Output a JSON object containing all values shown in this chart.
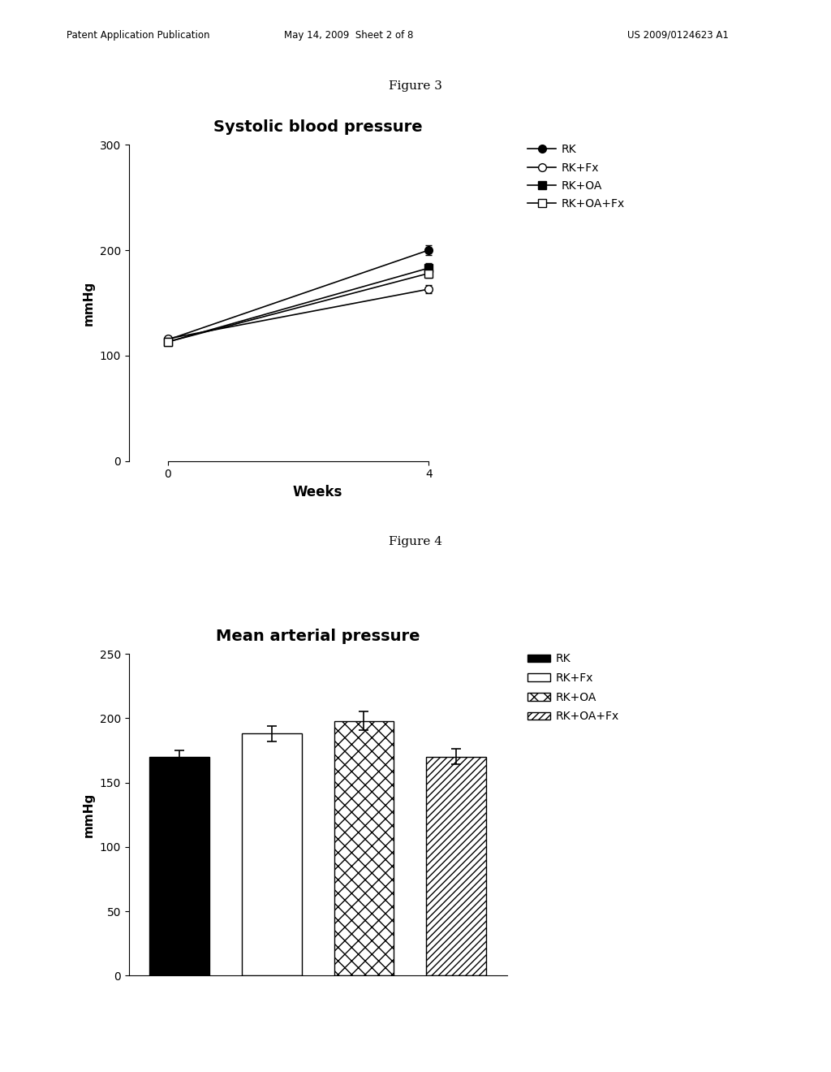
{
  "fig3_title": "Systolic blood pressure",
  "fig4_title": "Mean arterial pressure",
  "fig3_xlabel": "Weeks",
  "fig3_ylabel": "mmHg",
  "fig4_ylabel": "mmHg",
  "fig3_ylim": [
    0,
    300
  ],
  "fig4_ylim": [
    0,
    250
  ],
  "fig3_yticks": [
    0,
    100,
    200,
    300
  ],
  "fig4_yticks": [
    0,
    50,
    100,
    150,
    200,
    250
  ],
  "fig3_xticks": [
    0,
    4
  ],
  "weeks": [
    0,
    4
  ],
  "series_names": [
    "RK",
    "RK+Fx",
    "RK+OA",
    "RK+OA+Fx"
  ],
  "series": {
    "RK": {
      "y": [
        115,
        200
      ],
      "yerr": [
        3,
        5
      ],
      "marker": "o",
      "filled": true
    },
    "RK+Fx": {
      "y": [
        116,
        163
      ],
      "yerr": [
        2,
        4
      ],
      "marker": "o",
      "filled": false
    },
    "RK+OA": {
      "y": [
        113,
        183
      ],
      "yerr": [
        2,
        5
      ],
      "marker": "s",
      "filled": true
    },
    "RK+OA+Fx": {
      "y": [
        113,
        178
      ],
      "yerr": [
        2,
        4
      ],
      "marker": "s",
      "filled": false
    }
  },
  "bar_labels": [
    "RK",
    "RK+Fx",
    "RK+OA",
    "RK+OA+Fx"
  ],
  "bar_values": [
    170,
    188,
    198,
    170
  ],
  "bar_errors": [
    5,
    6,
    7,
    6
  ],
  "header_left": "Patent Application Publication",
  "header_mid": "May 14, 2009  Sheet 2 of 8",
  "header_right": "US 2009/0124623 A1",
  "fig3_label": "Figure 3",
  "fig4_label": "Figure 4",
  "background_color": "white"
}
